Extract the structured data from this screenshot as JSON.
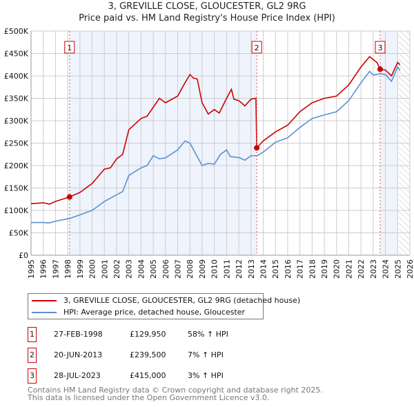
{
  "title": "3, GREVILLE CLOSE, GLOUCESTER, GL2 9RG",
  "subtitle": "Price paid vs. HM Land Registry's House Price Index (HPI)",
  "chart_data": {
    "type": "line",
    "title": "3, GREVILLE CLOSE, GLOUCESTER, GL2 9RG",
    "xlim": [
      1995,
      2026
    ],
    "ylim": [
      0,
      500000
    ],
    "x_ticks": [
      "1995",
      "1996",
      "1997",
      "1998",
      "1999",
      "2000",
      "2001",
      "2002",
      "2003",
      "2004",
      "2005",
      "2006",
      "2007",
      "2008",
      "2009",
      "2010",
      "2011",
      "2012",
      "2013",
      "2014",
      "2015",
      "2016",
      "2017",
      "2018",
      "2019",
      "2020",
      "2021",
      "2022",
      "2023",
      "2024",
      "2025",
      "2026"
    ],
    "y_ticks": [
      {
        "v": 0,
        "label": "£0"
      },
      {
        "v": 50000,
        "label": "£50K"
      },
      {
        "v": 100000,
        "label": "£100K"
      },
      {
        "v": 150000,
        "label": "£150K"
      },
      {
        "v": 200000,
        "label": "£200K"
      },
      {
        "v": 250000,
        "label": "£250K"
      },
      {
        "v": 300000,
        "label": "£300K"
      },
      {
        "v": 350000,
        "label": "£350K"
      },
      {
        "v": 400000,
        "label": "£400K"
      },
      {
        "v": 450000,
        "label": "£450K"
      },
      {
        "v": 500000,
        "label": "£500K"
      }
    ],
    "grid": true,
    "shaded_ranges": [
      [
        1998.15,
        2013.47
      ],
      [
        2023.57,
        2025.0
      ]
    ],
    "hatched_from": 2025.1,
    "series": [
      {
        "name": "3, GREVILLE CLOSE, GLOUCESTER, GL2 9RG (detached house)",
        "color": "#cc0000",
        "x": [
          1995,
          1996,
          1996.5,
          1997,
          1998.15,
          1999,
          2000,
          2001,
          2001.5,
          2002,
          2002.5,
          2003,
          2004,
          2004.5,
          2005,
          2005.5,
          2006,
          2007,
          2007.5,
          2008,
          2008.3,
          2008.6,
          2009,
          2009.5,
          2010,
          2010.4,
          2011,
          2011.4,
          2011.6,
          2012,
          2012.5,
          2013,
          2013.4,
          2013.47,
          2014,
          2015,
          2016,
          2017,
          2018,
          2019,
          2020,
          2021,
          2022,
          2022.7,
          2023.3,
          2023.57,
          2024,
          2024.5,
          2025,
          2025.2
        ],
        "y": [
          115000,
          117000,
          114000,
          120000,
          129950,
          140000,
          160000,
          192000,
          195000,
          215000,
          225000,
          280000,
          305000,
          310000,
          330000,
          350000,
          340000,
          355000,
          380000,
          403000,
          395000,
          393000,
          340000,
          315000,
          325000,
          317000,
          350000,
          370000,
          348000,
          345000,
          333000,
          348000,
          350000,
          239500,
          255000,
          275000,
          290000,
          320000,
          340000,
          350000,
          355000,
          380000,
          420000,
          443000,
          430000,
          415000,
          413000,
          400000,
          430000,
          425000
        ]
      },
      {
        "name": "HPI: Average price, detached house, Gloucester",
        "color": "#5b8fd4",
        "x": [
          1995,
          1996,
          1996.5,
          1997,
          1998.15,
          1999,
          2000,
          2001,
          2002,
          2002.5,
          2003,
          2004,
          2004.5,
          2005,
          2005.5,
          2006,
          2007,
          2007.6,
          2008,
          2008.5,
          2009,
          2009.5,
          2010,
          2010.5,
          2011,
          2011.3,
          2012,
          2012.5,
          2013,
          2013.5,
          2014,
          2015,
          2016,
          2017,
          2018,
          2019,
          2020,
          2021,
          2022,
          2022.7,
          2023,
          2023.6,
          2024,
          2024.5,
          2025,
          2025.2
        ],
        "y": [
          73000,
          73000,
          72000,
          76000,
          82000,
          90000,
          100000,
          120000,
          135000,
          142000,
          178000,
          195000,
          200000,
          222000,
          215000,
          217000,
          235000,
          255000,
          250000,
          225000,
          200000,
          205000,
          203000,
          225000,
          235000,
          220000,
          218000,
          212000,
          222000,
          222000,
          230000,
          252000,
          262000,
          285000,
          305000,
          313000,
          320000,
          345000,
          385000,
          410000,
          402000,
          405000,
          403000,
          388000,
          420000,
          412000
        ]
      }
    ],
    "annotations": [
      {
        "label": "1",
        "x": 1998.15,
        "y": 129950
      },
      {
        "label": "2",
        "x": 2013.47,
        "y": 239500
      },
      {
        "label": "3",
        "x": 2023.57,
        "y": 415000
      }
    ]
  },
  "legend": {
    "items": [
      {
        "label": "3, GREVILLE CLOSE, GLOUCESTER, GL2 9RG (detached house)",
        "color": "#cc0000"
      },
      {
        "label": "HPI: Average price, detached house, Gloucester",
        "color": "#5b8fd4"
      }
    ]
  },
  "transactions": [
    {
      "num": "1",
      "date": "27-FEB-1998",
      "price": "£129,950",
      "hpi": "58% ↑ HPI"
    },
    {
      "num": "2",
      "date": "20-JUN-2013",
      "price": "£239,500",
      "hpi": "7% ↑ HPI"
    },
    {
      "num": "3",
      "date": "28-JUL-2023",
      "price": "£415,000",
      "hpi": "3% ↑ HPI"
    }
  ],
  "footer": {
    "line1": "Contains HM Land Registry data © Crown copyright and database right 2025.",
    "line2": "This data is licensed under the Open Government Licence v3.0."
  }
}
